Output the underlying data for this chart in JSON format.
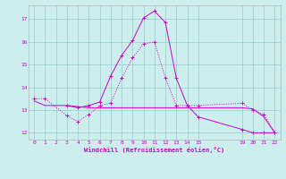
{
  "background_color": "#cceeed",
  "grid_color": "#99cccc",
  "line_color": "#cc00cc",
  "title": "Windchill (Refroidissement éolien,°C)",
  "xlim": [
    -0.5,
    22.5
  ],
  "ylim": [
    11.7,
    17.6
  ],
  "yticks": [
    12,
    13,
    14,
    15,
    16,
    17
  ],
  "xticks": [
    0,
    1,
    2,
    3,
    4,
    5,
    6,
    7,
    8,
    9,
    10,
    11,
    12,
    13,
    14,
    15,
    19,
    20,
    21,
    22
  ],
  "xticklabels": [
    "0",
    "1",
    "2",
    "3",
    "4",
    "5",
    "6",
    "7",
    "8",
    "9",
    "10",
    "11",
    "12",
    "13",
    "14",
    "15",
    "19",
    "20",
    "21",
    "22"
  ],
  "s1_x": [
    0,
    1,
    3,
    4,
    5,
    6,
    7,
    8,
    9,
    10,
    11,
    12,
    13,
    14,
    15,
    19,
    20,
    21,
    22
  ],
  "s1_y": [
    13.5,
    13.5,
    12.75,
    12.5,
    12.8,
    13.2,
    13.3,
    14.4,
    15.3,
    15.9,
    16.0,
    14.4,
    13.2,
    13.2,
    13.2,
    13.3,
    13.0,
    12.8,
    12.0
  ],
  "s2_x": [
    0,
    1,
    3,
    4,
    5,
    6,
    7,
    8,
    9,
    10,
    11,
    12,
    13,
    14,
    15,
    19,
    20,
    21,
    22
  ],
  "s2_y": [
    13.4,
    13.2,
    13.2,
    13.15,
    13.1,
    13.1,
    13.1,
    13.1,
    13.1,
    13.1,
    13.1,
    13.1,
    13.1,
    13.1,
    13.1,
    13.1,
    13.05,
    12.7,
    12.0
  ],
  "s3_x": [
    3,
    4,
    5,
    6,
    7,
    8,
    9,
    10,
    11,
    12,
    13,
    14,
    15,
    19,
    20,
    21,
    22
  ],
  "s3_y": [
    13.2,
    13.1,
    13.2,
    13.35,
    14.5,
    15.4,
    16.05,
    17.05,
    17.35,
    16.85,
    14.4,
    13.2,
    12.7,
    12.15,
    12.0,
    12.0,
    12.0
  ]
}
